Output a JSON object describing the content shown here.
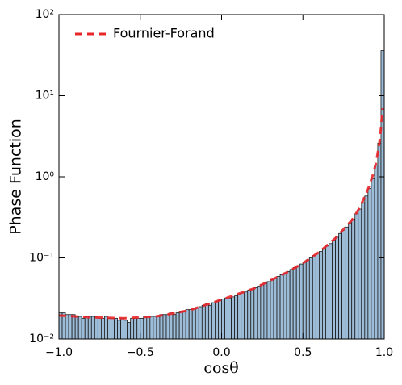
{
  "chart_data": {
    "type": "histogram",
    "xlabel": "cosθ",
    "ylabel": "Phase Function",
    "log_y": true,
    "legend": "upper left",
    "color": "#9dbcd8",
    "edgecolor": "#1a1a1a",
    "bins": [
      -1.0,
      -0.98,
      -0.96,
      -0.94,
      -0.92,
      -0.9,
      -0.88,
      -0.86,
      -0.84,
      -0.82,
      -0.8,
      -0.78,
      -0.76,
      -0.74,
      -0.72,
      -0.7,
      -0.68,
      -0.66,
      -0.64,
      -0.62,
      -0.6,
      -0.58,
      -0.56,
      -0.54,
      -0.52,
      -0.5,
      -0.48,
      -0.46,
      -0.44,
      -0.42,
      -0.4,
      -0.38,
      -0.36,
      -0.34,
      -0.32,
      -0.3,
      -0.28,
      -0.26,
      -0.24,
      -0.22,
      -0.2,
      -0.18,
      -0.16,
      -0.14,
      -0.12,
      -0.1,
      -0.08,
      -0.06,
      -0.04,
      -0.02,
      0.0,
      0.02,
      0.04,
      0.06,
      0.08,
      0.1,
      0.12,
      0.14,
      0.16,
      0.18,
      0.2,
      0.22,
      0.24,
      0.26,
      0.28,
      0.3,
      0.32,
      0.34,
      0.36,
      0.38,
      0.4,
      0.42,
      0.44,
      0.46,
      0.48,
      0.5,
      0.52,
      0.54,
      0.56,
      0.58,
      0.6,
      0.62,
      0.64,
      0.66,
      0.68,
      0.7,
      0.72,
      0.74,
      0.76,
      0.78,
      0.8,
      0.82,
      0.84,
      0.86,
      0.88,
      0.9,
      0.92,
      0.94,
      0.96,
      0.98,
      1.0
    ],
    "values": [
      0.021,
      0.021,
      0.02,
      0.02,
      0.02,
      0.019,
      0.019,
      0.018,
      0.019,
      0.019,
      0.019,
      0.019,
      0.018,
      0.018,
      0.019,
      0.018,
      0.018,
      0.018,
      0.017,
      0.018,
      0.017,
      0.016,
      0.018,
      0.018,
      0.018,
      0.018,
      0.019,
      0.019,
      0.019,
      0.019,
      0.019,
      0.02,
      0.02,
      0.02,
      0.021,
      0.02,
      0.021,
      0.022,
      0.022,
      0.023,
      0.023,
      0.024,
      0.024,
      0.025,
      0.026,
      0.027,
      0.026,
      0.028,
      0.029,
      0.03,
      0.031,
      0.032,
      0.032,
      0.033,
      0.034,
      0.036,
      0.037,
      0.038,
      0.04,
      0.041,
      0.043,
      0.045,
      0.047,
      0.049,
      0.051,
      0.054,
      0.056,
      0.059,
      0.062,
      0.065,
      0.068,
      0.072,
      0.076,
      0.08,
      0.084,
      0.089,
      0.094,
      0.1,
      0.107,
      0.114,
      0.12,
      0.13,
      0.14,
      0.15,
      0.165,
      0.18,
      0.2,
      0.22,
      0.24,
      0.27,
      0.3,
      0.35,
      0.4,
      0.48,
      0.58,
      0.72,
      0.95,
      1.4,
      2.6,
      36
    ],
    "series": [
      {
        "name": "Fournier-Forand",
        "type": "line",
        "color": "#e8262a",
        "x": [
          -1.0,
          -0.8,
          -0.6,
          -0.4,
          -0.2,
          0.0,
          0.2,
          0.4,
          0.5,
          0.6,
          0.7,
          0.8,
          0.85,
          0.9,
          0.93,
          0.95,
          0.97,
          0.98,
          0.99
        ],
        "values": [
          0.0195,
          0.0185,
          0.018,
          0.019,
          0.0225,
          0.0305,
          0.042,
          0.066,
          0.086,
          0.118,
          0.175,
          0.29,
          0.42,
          0.7,
          1.05,
          1.5,
          2.6,
          4,
          7
        ]
      }
    ],
    "xlim": [
      -1,
      1
    ],
    "xticks": [
      {
        "value": -1,
        "label": "−1.0"
      },
      {
        "value": -0.5,
        "label": "−0.5"
      },
      {
        "value": 0,
        "label": "0.0"
      },
      0.5,
      {
        "value": 1,
        "label": "1.0"
      }
    ],
    "ylim": [
      0.01,
      100
    ],
    "yticks": [
      {
        "value": 0.01,
        "label": "10⁻²"
      },
      {
        "value": 0.1,
        "label": "10⁻¹"
      },
      {
        "value": 1,
        "label": "10⁰"
      },
      {
        "value": 10,
        "label": "10¹"
      },
      {
        "value": 100,
        "label": "10²"
      }
    ]
  }
}
